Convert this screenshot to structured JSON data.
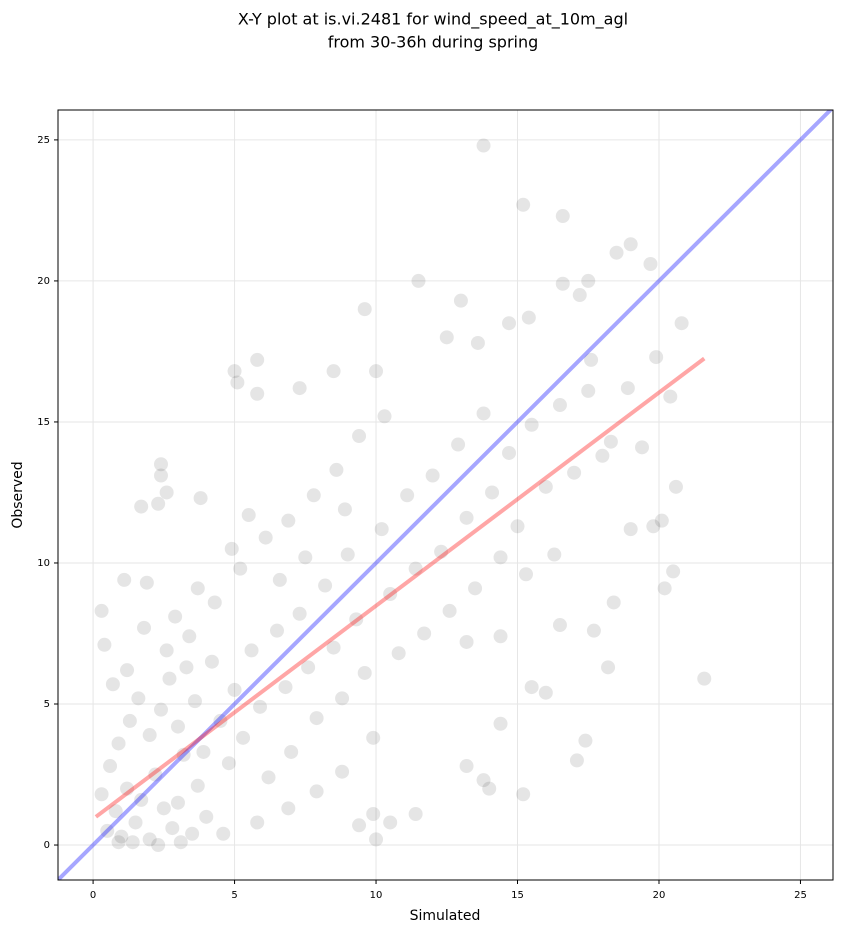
{
  "chart_data": {
    "type": "scatter",
    "title": [
      "X-Y plot at is.vi.2481 for wind_speed_at_10m_agl",
      "from 30-36h during spring"
    ],
    "x_label": "Simulated",
    "y_label": "Observed",
    "xlim": [
      -1.24,
      26.15
    ],
    "ylim": [
      -1.24,
      26.06
    ],
    "xticks": [
      0,
      5,
      10,
      15,
      20,
      25
    ],
    "yticks": [
      0,
      5,
      10,
      15,
      20,
      25
    ],
    "grid": true,
    "series": [
      {
        "color": "#000000",
        "opacity": 0.1,
        "x": [
          13.8,
          15.2,
          16.6,
          19,
          18.5,
          19.7,
          17.5,
          11.5,
          16.6,
          17.2,
          9.6,
          13,
          14.7,
          15.4,
          20.8,
          12.5,
          13.6,
          17.6,
          19.9,
          5.8,
          5,
          5.1,
          7.3,
          10,
          8.5,
          5.8,
          3.8,
          2.4,
          2.4,
          2.6,
          2.3,
          1.7,
          0.3,
          0.4,
          1.1,
          1.9,
          21.6,
          17.1,
          17.4,
          15.2,
          14,
          13.8,
          11.4,
          10,
          9.4,
          10.5,
          9.9,
          20.5,
          20.1,
          20.2,
          19,
          19.8,
          18.4,
          18.2,
          17.7,
          16,
          15.5,
          16.5,
          14.4,
          13.2,
          20.6,
          20.4,
          19.4,
          18.9,
          18.3,
          13.2,
          14.4,
          15.3,
          16.3,
          0.5,
          0.8,
          1,
          1.2,
          1.5,
          1.7,
          2,
          2.2,
          2.5,
          2.8,
          3,
          3.2,
          3.5,
          3.7,
          4,
          0.6,
          0.9,
          1.3,
          1.6,
          2,
          2.4,
          2.7,
          3,
          3.3,
          3.6,
          3.9,
          4.2,
          4.5,
          4.8,
          5,
          5.3,
          5.6,
          5.9,
          6.2,
          6.5,
          6.8,
          7,
          7.3,
          7.6,
          7.9,
          8.2,
          8.5,
          8.8,
          9,
          9.3,
          9.6,
          9.9,
          10.2,
          10.5,
          10.8,
          11.1,
          11.4,
          11.7,
          12,
          12.3,
          12.6,
          12.9,
          13.2,
          13.5,
          13.8,
          14.1,
          14.4,
          14.7,
          15,
          15.5,
          16,
          16.5,
          17,
          17.5,
          18,
          4.3,
          5.2,
          6.1,
          6.9,
          7.8,
          8.6,
          9.4,
          10.3,
          3.4,
          2.6,
          1.8,
          1.2,
          0.7,
          0.3,
          0.9,
          1.4,
          2.3,
          3.1,
          4.6,
          5.8,
          6.9,
          7.9,
          8.8,
          5.5,
          4.9,
          6.6,
          7.5,
          8.9,
          3.7,
          2.9
        ],
        "values": [
          24.8,
          22.7,
          22.3,
          21.3,
          21,
          20.6,
          20,
          20,
          19.9,
          19.5,
          19,
          19.3,
          18.5,
          18.7,
          18.5,
          18,
          17.8,
          17.2,
          17.3,
          17.2,
          16.8,
          16.4,
          16.2,
          16.8,
          16.8,
          16,
          12.3,
          13.5,
          13.1,
          12.5,
          12.1,
          12,
          8.3,
          7.1,
          9.4,
          9.3,
          5.9,
          3,
          3.7,
          1.8,
          2,
          2.3,
          1.1,
          0.2,
          0.7,
          0.8,
          1.1,
          9.7,
          11.5,
          9.1,
          11.2,
          11.3,
          8.6,
          6.3,
          7.6,
          5.4,
          5.6,
          7.8,
          4.3,
          2.8,
          12.7,
          15.9,
          14.1,
          16.2,
          14.3,
          7.2,
          7.4,
          9.6,
          10.3,
          0.5,
          1.2,
          0.3,
          2,
          0.8,
          1.6,
          0.2,
          2.5,
          1.3,
          0.6,
          1.5,
          3.2,
          0.4,
          2.1,
          1,
          2.8,
          3.6,
          4.4,
          5.2,
          3.9,
          4.8,
          5.9,
          4.2,
          6.3,
          5.1,
          3.3,
          6.5,
          4.4,
          2.9,
          5.5,
          3.8,
          6.9,
          4.9,
          2.4,
          7.6,
          5.6,
          3.3,
          8.2,
          6.3,
          4.5,
          9.2,
          7,
          5.2,
          10.3,
          8,
          6.1,
          3.8,
          11.2,
          8.9,
          6.8,
          12.4,
          9.8,
          7.5,
          13.1,
          10.4,
          8.3,
          14.2,
          11.6,
          9.1,
          15.3,
          12.5,
          10.2,
          13.9,
          11.3,
          14.9,
          12.7,
          15.6,
          13.2,
          16.1,
          13.8,
          8.6,
          9.8,
          10.9,
          11.5,
          12.4,
          13.3,
          14.5,
          15.2,
          7.4,
          6.9,
          7.7,
          6.2,
          5.7,
          1.8,
          0.1,
          0.1,
          0,
          0.1,
          0.4,
          0.8,
          1.3,
          1.9,
          2.6,
          11.7,
          10.5,
          9.4,
          10.2,
          11.9,
          9.1,
          8.1
        ]
      }
    ],
    "lines": [
      {
        "color": "#0000ff",
        "opacity": 0.35,
        "x": [
          -1.24,
          26.15
        ],
        "values": [
          -1.24,
          26.15
        ]
      },
      {
        "color": "#ff0000",
        "opacity": 0.35,
        "x": [
          0.1,
          21.6
        ],
        "values": [
          1.0,
          17.25
        ]
      }
    ]
  }
}
